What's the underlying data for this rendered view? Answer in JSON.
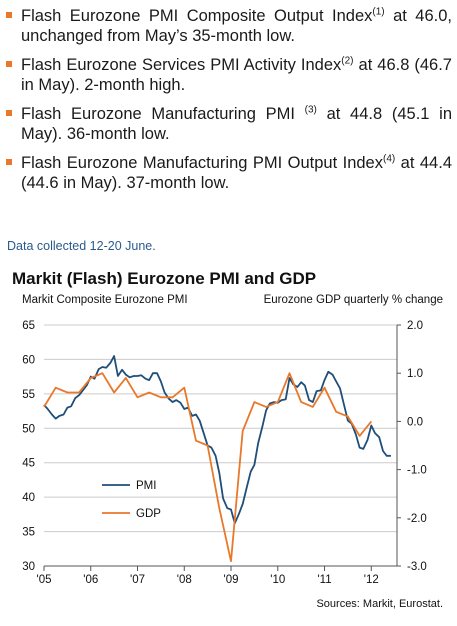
{
  "bullets": [
    {
      "text": "Flash Eurozone PMI Composite Output Index",
      "sup": "(1)",
      "tail": " at 46.0, unchanged from May’s 35-month low."
    },
    {
      "text": "Flash Eurozone Services PMI Activity Index",
      "sup": "(2)",
      "tail": " at 46.8 (46.7 in May). 2-month high."
    },
    {
      "text": "Flash Eurozone Manufacturing PMI ",
      "sup": "(3)",
      "tail": " at 44.8 (45.1 in May). 36-month low."
    },
    {
      "text": "Flash Eurozone Manufacturing PMI Output Index",
      "sup": "(4)",
      "tail": " at 44.4 (44.6 in May). 37-month low."
    }
  ],
  "collected_note": "Data collected 12-20 June.",
  "sources": "Sources: Markit, Eurostat.",
  "colors": {
    "pmi": "#1f4e79",
    "gdp": "#e8782a",
    "bullet": "#e8782a",
    "grid": "#cccccc"
  },
  "chart_data": {
    "type": "line",
    "title": "Markit (Flash) Eurozone PMI and GDP",
    "ylabel_left": "Markit Composite Eurozone PMI",
    "ylabel_right": "Eurozone GDP quarterly % change",
    "ylim_left": [
      30,
      65
    ],
    "ylim_right": [
      -3.0,
      2.0
    ],
    "yticks_left": [
      "30",
      "35",
      "40",
      "45",
      "50",
      "55",
      "60",
      "65"
    ],
    "yticks_right": [
      "-3.0",
      "-2.0",
      "-1.0",
      "0.0",
      "1.0",
      "2.0"
    ],
    "xticks": [
      "'05",
      "'06",
      "'07",
      "'08",
      "'09",
      "'10",
      "'11",
      "'12"
    ],
    "xlim": [
      2005.0,
      2012.55
    ],
    "grid": true,
    "legend": "left-middle",
    "series": [
      {
        "name": "PMI",
        "axis": "left",
        "x": [
          2005.0,
          2005.08,
          2005.17,
          2005.25,
          2005.33,
          2005.42,
          2005.5,
          2005.58,
          2005.67,
          2005.75,
          2005.83,
          2005.92,
          2006.0,
          2006.08,
          2006.17,
          2006.25,
          2006.33,
          2006.42,
          2006.5,
          2006.58,
          2006.67,
          2006.75,
          2006.83,
          2006.92,
          2007.0,
          2007.08,
          2007.17,
          2007.25,
          2007.33,
          2007.42,
          2007.5,
          2007.58,
          2007.67,
          2007.75,
          2007.83,
          2007.92,
          2008.0,
          2008.08,
          2008.17,
          2008.25,
          2008.33,
          2008.42,
          2008.5,
          2008.58,
          2008.67,
          2008.75,
          2008.83,
          2008.92,
          2009.0,
          2009.08,
          2009.17,
          2009.25,
          2009.33,
          2009.42,
          2009.5,
          2009.58,
          2009.67,
          2009.75,
          2009.83,
          2009.92,
          2010.0,
          2010.08,
          2010.17,
          2010.25,
          2010.33,
          2010.42,
          2010.5,
          2010.58,
          2010.67,
          2010.75,
          2010.83,
          2010.92,
          2011.0,
          2011.08,
          2011.17,
          2011.25,
          2011.33,
          2011.42,
          2011.5,
          2011.58,
          2011.67,
          2011.75,
          2011.83,
          2011.92,
          2012.0,
          2012.08,
          2012.17,
          2012.25,
          2012.33,
          2012.42
        ],
        "values": [
          53.4,
          52.8,
          52.0,
          51.4,
          51.8,
          52.0,
          53.0,
          53.2,
          54.4,
          54.8,
          55.5,
          56.3,
          57.5,
          57.2,
          58.6,
          58.9,
          58.8,
          59.5,
          60.5,
          57.6,
          58.5,
          57.8,
          57.4,
          57.6,
          57.6,
          57.7,
          57.2,
          57.0,
          58.0,
          58.0,
          56.8,
          55.2,
          54.3,
          53.8,
          54.1,
          53.7,
          52.8,
          53.0,
          51.8,
          52.0,
          51.1,
          49.2,
          47.5,
          47.2,
          46.0,
          43.5,
          39.8,
          38.4,
          38.2,
          36.2,
          37.6,
          39.0,
          41.2,
          43.7,
          44.7,
          47.8,
          50.2,
          52.6,
          53.6,
          53.8,
          53.7,
          54.1,
          54.2,
          57.3,
          56.4,
          56.0,
          56.7,
          56.2,
          54.1,
          53.8,
          55.4,
          55.5,
          57.0,
          58.2,
          57.8,
          56.8,
          55.8,
          53.3,
          51.1,
          50.7,
          49.1,
          47.2,
          47.0,
          48.3,
          50.4,
          49.3,
          48.7,
          46.7,
          46.0,
          46.0
        ]
      },
      {
        "name": "GDP",
        "axis": "right",
        "x": [
          2005.0,
          2005.25,
          2005.5,
          2005.75,
          2006.0,
          2006.25,
          2006.5,
          2006.75,
          2007.0,
          2007.25,
          2007.5,
          2007.75,
          2008.0,
          2008.25,
          2008.5,
          2008.75,
          2009.0,
          2009.25,
          2009.5,
          2009.75,
          2010.0,
          2010.25,
          2010.5,
          2010.75,
          2011.0,
          2011.25,
          2011.5,
          2011.75,
          2012.0
        ],
        "values": [
          0.3,
          0.7,
          0.6,
          0.6,
          0.9,
          1.0,
          0.6,
          0.9,
          0.5,
          0.6,
          0.5,
          0.5,
          0.7,
          -0.4,
          -0.5,
          -1.8,
          -2.9,
          -0.2,
          0.4,
          0.3,
          0.4,
          1.0,
          0.4,
          0.3,
          0.7,
          0.2,
          0.1,
          -0.3,
          0.0
        ]
      }
    ]
  }
}
